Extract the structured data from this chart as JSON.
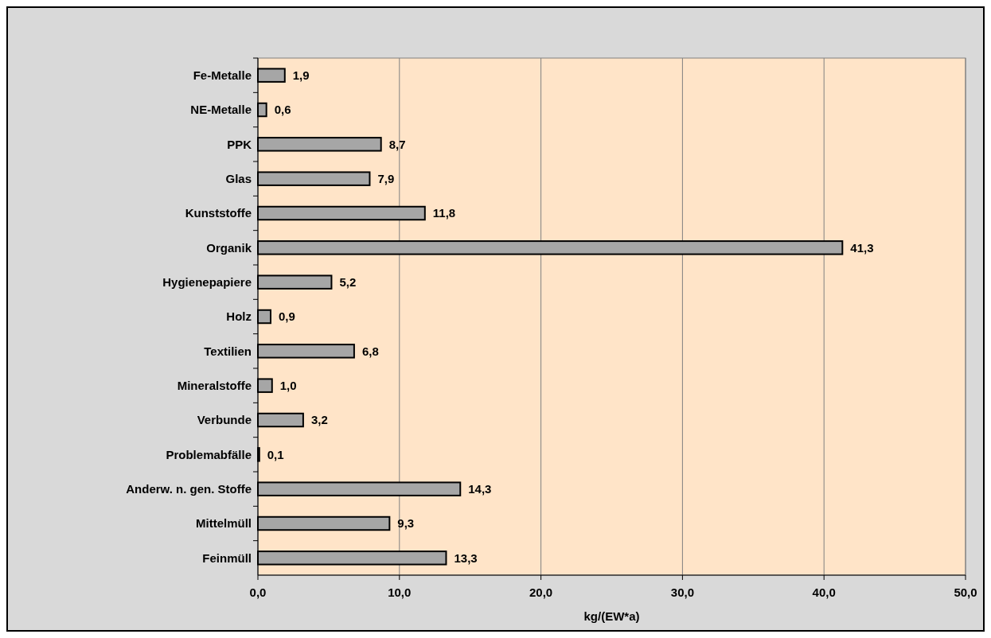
{
  "chart_data": {
    "type": "bar",
    "orientation": "horizontal",
    "xlabel": "kg/(EW*a)",
    "categories": [
      "Fe-Metalle",
      "NE-Metalle",
      "PPK",
      "Glas",
      "Kunststoffe",
      "Organik",
      "Hygienepapiere",
      "Holz",
      "Textilien",
      "Mineralstoffe",
      "Verbunde",
      "Problemabfälle",
      "Anderw. n. gen. Stoffe",
      "Mittelmüll",
      "Feinmüll"
    ],
    "values": [
      1.9,
      0.6,
      8.7,
      7.9,
      11.8,
      41.3,
      5.2,
      0.9,
      6.8,
      1.0,
      3.2,
      0.1,
      14.3,
      9.3,
      13.3
    ],
    "value_labels": [
      "1,9",
      "0,6",
      "8,7",
      "7,9",
      "11,8",
      "41,3",
      "5,2",
      "0,9",
      "6,8",
      "1,0",
      "3,2",
      "0,1",
      "14,3",
      "9,3",
      "13,3"
    ],
    "color": "#a6a6a6",
    "xlim": [
      0,
      50
    ],
    "xticks": [
      {
        "value": 0,
        "label": "0,0"
      },
      {
        "value": 10,
        "label": "10,0"
      },
      {
        "value": 20,
        "label": "20,0"
      },
      {
        "value": 30,
        "label": "30,0"
      },
      {
        "value": 40,
        "label": "40,0"
      },
      {
        "value": 50,
        "label": "50,0"
      }
    ],
    "grid": "x"
  }
}
